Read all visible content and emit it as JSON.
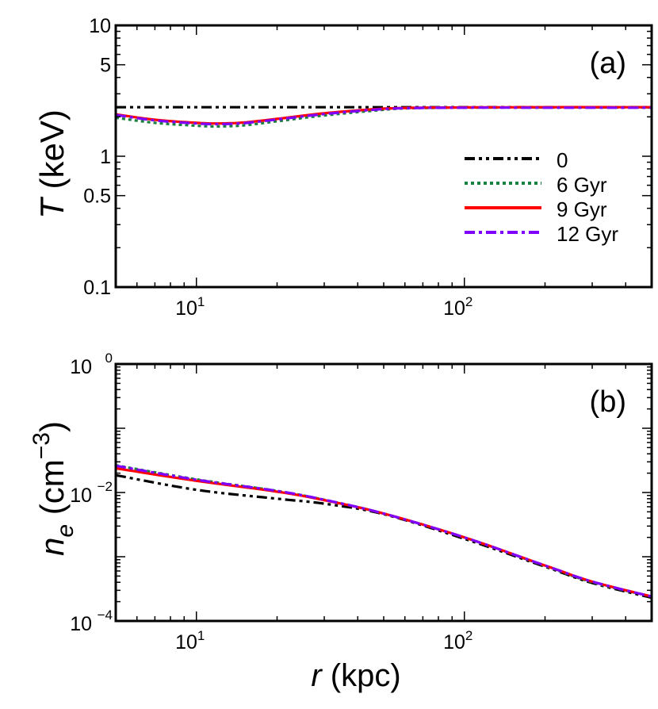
{
  "chart_data": [
    {
      "type": "line",
      "panel_label": "(a)",
      "ylabel_symbol": "T",
      "ylabel_unit": " (keV)",
      "xscale": "log",
      "yscale": "log",
      "xlim": [
        5,
        500
      ],
      "ylim": [
        0.1,
        10
      ],
      "xticks": [
        {
          "value": 10,
          "base": "10",
          "exp": "1"
        },
        {
          "value": 100,
          "base": "10",
          "exp": "2"
        }
      ],
      "yticks": [
        {
          "value": 0.1,
          "label": "0.1"
        },
        {
          "value": 0.5,
          "label": "0.5"
        },
        {
          "value": 1,
          "label": "1"
        },
        {
          "value": 5,
          "label": "5"
        },
        {
          "value": 10,
          "label": "10"
        }
      ],
      "grid": false,
      "legend_position": "center-right",
      "series": [
        {
          "name": "0",
          "color": "#000000",
          "style": "dash-dot-dot",
          "x": [
            5,
            500
          ],
          "y": [
            2.37,
            2.37
          ]
        },
        {
          "name": "6 Gyr",
          "color": "#1a8040",
          "style": "dotted",
          "x": [
            5,
            7,
            10,
            12,
            15,
            20,
            30,
            45,
            60,
            100,
            200,
            500
          ],
          "y": [
            1.97,
            1.8,
            1.71,
            1.69,
            1.72,
            1.85,
            2.05,
            2.22,
            2.32,
            2.35,
            2.36,
            2.36
          ]
        },
        {
          "name": "9 Gyr",
          "color": "#ff0000",
          "style": "solid",
          "x": [
            5,
            7,
            10,
            12,
            15,
            20,
            30,
            45,
            60,
            100,
            200,
            500
          ],
          "y": [
            2.09,
            1.9,
            1.8,
            1.78,
            1.81,
            1.93,
            2.13,
            2.28,
            2.34,
            2.36,
            2.37,
            2.37
          ]
        },
        {
          "name": "12 Gyr",
          "color": "#8000ff",
          "style": "dash-dot",
          "x": [
            5,
            7,
            10,
            12,
            15,
            20,
            30,
            45,
            60,
            100,
            200,
            500
          ],
          "y": [
            2.07,
            1.88,
            1.78,
            1.76,
            1.79,
            1.91,
            2.1,
            2.26,
            2.33,
            2.35,
            2.35,
            2.35
          ]
        }
      ]
    },
    {
      "type": "line",
      "panel_label": "(b)",
      "ylabel_symbol": "n",
      "ylabel_sub": "e",
      "ylabel_unit_pre": " (cm",
      "ylabel_unit_exp": "−3",
      "ylabel_unit_post": ")",
      "xlabel_symbol": "r",
      "xlabel_unit": " (kpc)",
      "xscale": "log",
      "yscale": "log",
      "xlim": [
        5,
        500
      ],
      "ylim": [
        0.0001,
        1
      ],
      "xticks": [
        {
          "value": 10,
          "base": "10",
          "exp": "1"
        },
        {
          "value": 100,
          "base": "10",
          "exp": "2"
        }
      ],
      "yticks": [
        {
          "value": 1,
          "base": "10",
          "exp": "0"
        },
        {
          "value": 0.01,
          "base": "10",
          "exp": "−2"
        },
        {
          "value": 0.0001,
          "base": "10",
          "exp": "−4"
        }
      ],
      "grid": false,
      "series": [
        {
          "name": "0",
          "color": "#000000",
          "style": "dash-dot-dot",
          "x": [
            5,
            10,
            20,
            30,
            50,
            100,
            200,
            300,
            500
          ],
          "y": [
            0.0186,
            0.011,
            0.008,
            0.0067,
            0.0046,
            0.0019,
            0.0007,
            0.00039,
            0.00023
          ]
        },
        {
          "name": "6 Gyr",
          "color": "#1a8040",
          "style": "dotted",
          "x": [
            5,
            10,
            20,
            30,
            50,
            100,
            200,
            300,
            500
          ],
          "y": [
            0.0265,
            0.016,
            0.0106,
            0.0077,
            0.0047,
            0.002,
            0.00072,
            0.0004,
            0.00024
          ]
        },
        {
          "name": "9 Gyr",
          "color": "#ff0000",
          "style": "solid",
          "x": [
            5,
            10,
            20,
            30,
            50,
            100,
            200,
            300,
            500
          ],
          "y": [
            0.0238,
            0.0152,
            0.0103,
            0.0076,
            0.0047,
            0.002,
            0.00073,
            0.00041,
            0.00024
          ]
        },
        {
          "name": "12 Gyr",
          "color": "#8000ff",
          "style": "dash-dot",
          "x": [
            5,
            10,
            20,
            30,
            50,
            100,
            200,
            300,
            500
          ],
          "y": [
            0.0261,
            0.0158,
            0.0106,
            0.0077,
            0.0047,
            0.002,
            0.00073,
            0.00041,
            0.00024
          ]
        }
      ]
    }
  ]
}
